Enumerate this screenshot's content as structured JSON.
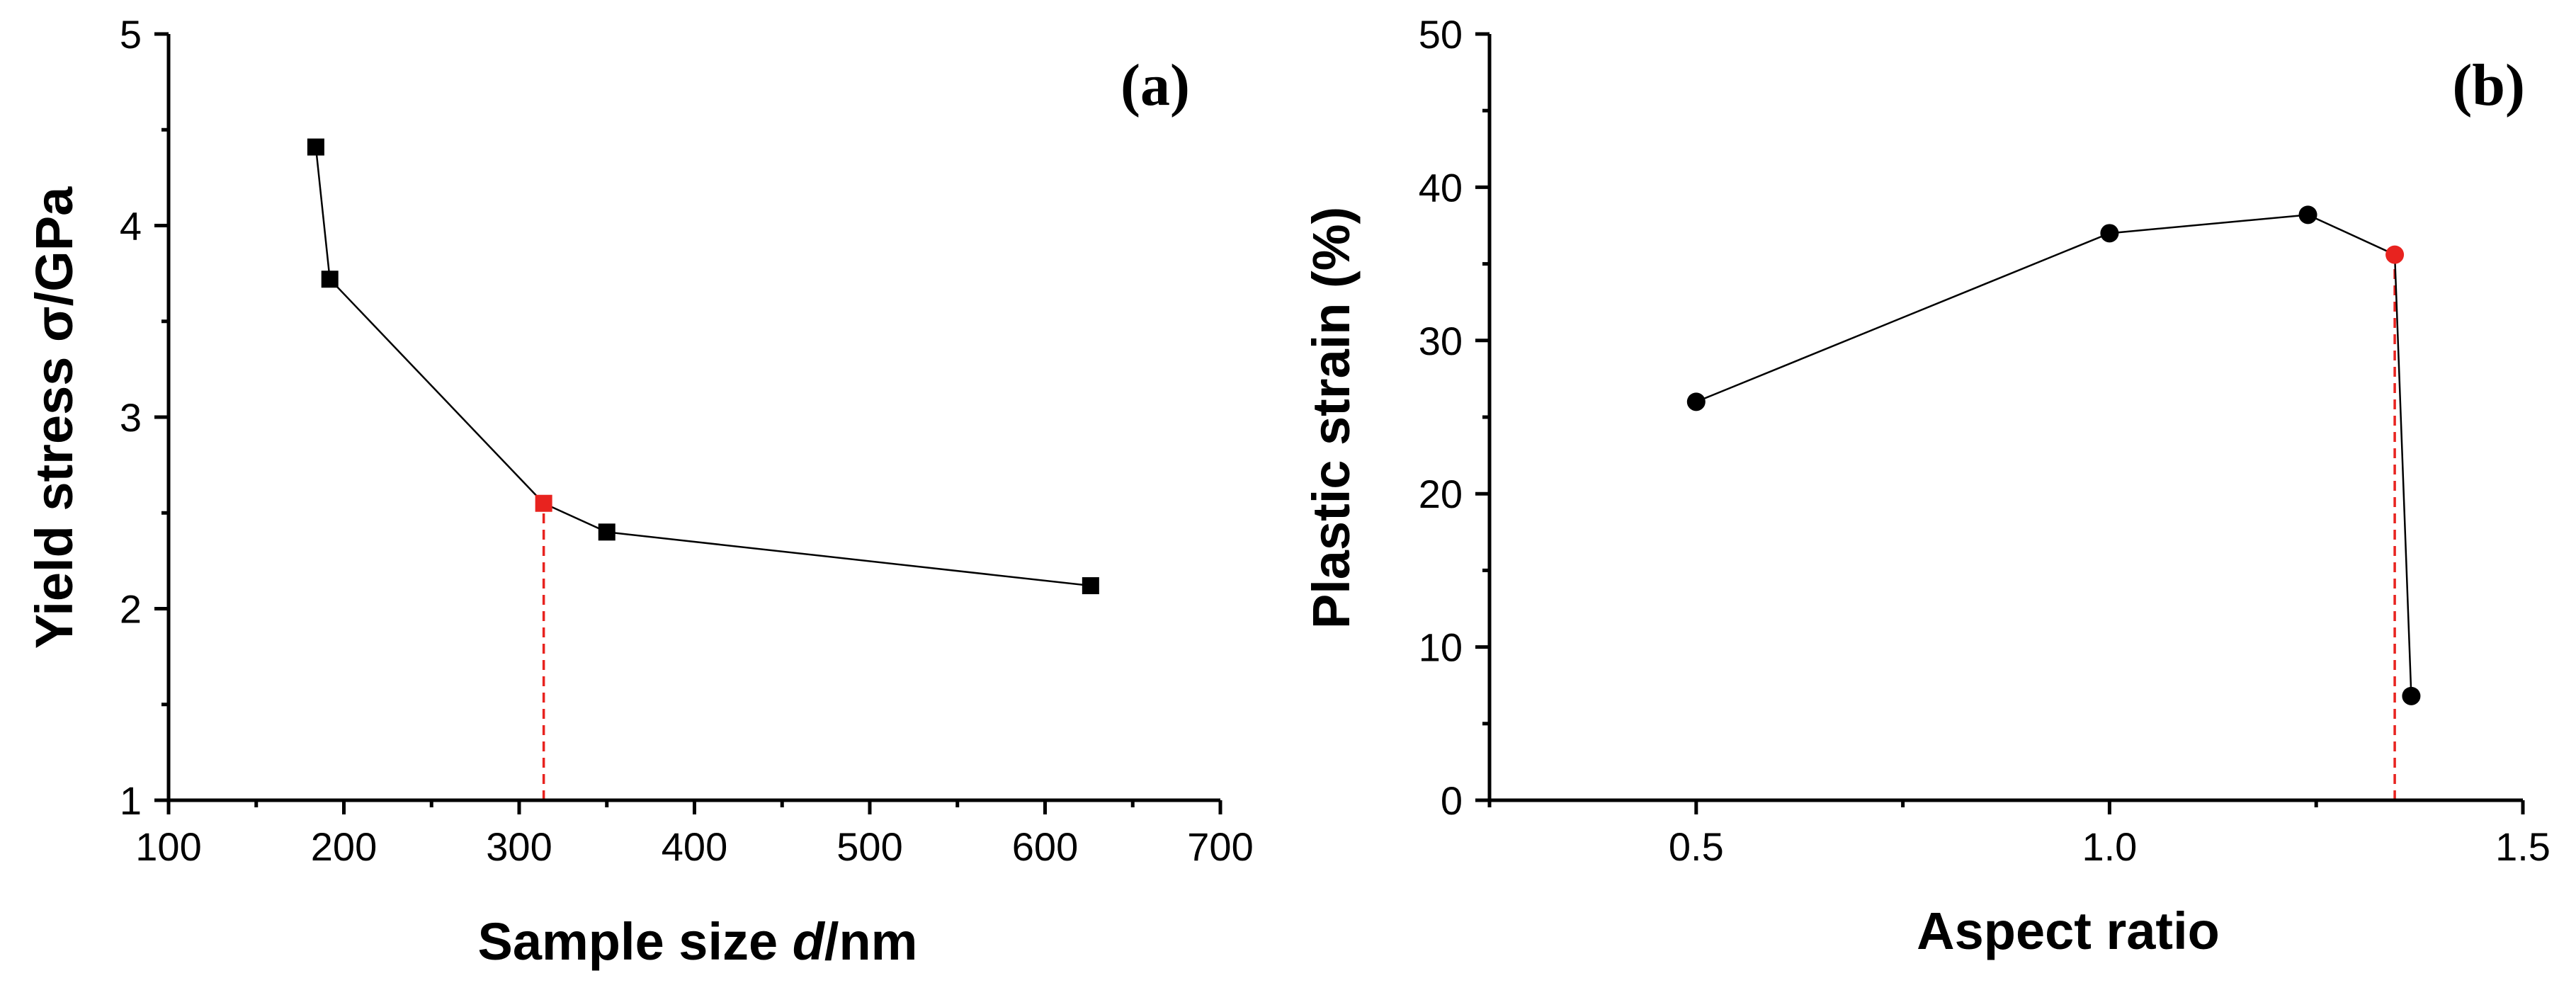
{
  "chart_data": [
    {
      "type": "line",
      "panel_label": "(a)",
      "xlabel_prefix": "Sample size ",
      "xlabel_var": "d",
      "xlabel_suffix": "/nm",
      "ylabel": "Yield stress σ/GPa",
      "xlim": [
        100,
        700
      ],
      "ylim": [
        1,
        5
      ],
      "x_ticks": [
        100,
        200,
        300,
        400,
        500,
        600,
        700
      ],
      "y_ticks": [
        1,
        2,
        3,
        4,
        5
      ],
      "x_tick_labels": [
        "100",
        "200",
        "300",
        "400",
        "500",
        "600",
        "700"
      ],
      "y_tick_labels": [
        "1",
        "2",
        "3",
        "4",
        "5"
      ],
      "x_minor_step": 50,
      "y_minor_step": 0.5,
      "marker": "square",
      "series": [
        {
          "name": "Yield stress",
          "x": [
            184,
            192,
            314,
            350,
            626
          ],
          "y": [
            4.41,
            3.72,
            2.55,
            2.4,
            2.12
          ],
          "colors": [
            "#000000",
            "#000000",
            "#e8231f",
            "#000000",
            "#000000"
          ]
        }
      ],
      "guide": {
        "x": 314,
        "y_from": 1,
        "y_to": 2.55,
        "color": "#e8231f"
      }
    },
    {
      "type": "line",
      "panel_label": "(b)",
      "xlabel": "Aspect ratio",
      "ylabel": "Plastic strain (%)",
      "xlim": [
        0.25,
        1.5
      ],
      "ylim": [
        0,
        50
      ],
      "x_ticks": [
        0.5,
        1.0,
        1.5
      ],
      "y_ticks": [
        0,
        10,
        20,
        30,
        40,
        50
      ],
      "x_tick_labels": [
        "0.5",
        "1.0",
        "1.5"
      ],
      "y_tick_labels": [
        "0",
        "10",
        "20",
        "30",
        "40",
        "50"
      ],
      "x_minor_step": 0.25,
      "y_minor_step": 5,
      "marker": "circle",
      "series": [
        {
          "name": "Plastic strain",
          "x": [
            0.5,
            1.0,
            1.24,
            1.345,
            1.365
          ],
          "y": [
            26.0,
            37.0,
            38.2,
            35.6,
            6.8
          ],
          "colors": [
            "#000000",
            "#000000",
            "#000000",
            "#e8231f",
            "#000000"
          ]
        }
      ],
      "guide": {
        "x": 1.345,
        "y_from": 0,
        "y_to": 35.6,
        "color": "#e8231f"
      }
    }
  ]
}
